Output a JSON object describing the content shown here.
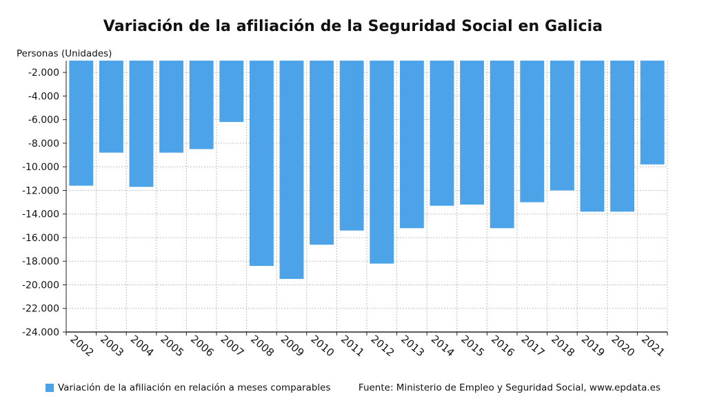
{
  "title": "Variación de la afiliación de la Seguridad Social en Galicia",
  "colors": {
    "bar": "#4da3e8",
    "grid": "#bdbdbd",
    "axis": "#222222"
  },
  "legend": {
    "label": "Variación de la afiliación en relación a meses comparables"
  },
  "source": "Fuente: Ministerio de Empleo y Seguridad Social, www.epdata.es",
  "chart_data": {
    "type": "bar",
    "ylabel": "Personas (Unidades)",
    "ylim": [
      -24000,
      -1000
    ],
    "yticks": [
      -2000,
      -4000,
      -6000,
      -8000,
      -10000,
      -12000,
      -14000,
      -16000,
      -18000,
      -20000,
      -22000,
      -24000
    ],
    "ytick_labels": [
      "-2.000",
      "-4.000",
      "-6.000",
      "-8.000",
      "-10.000",
      "-12.000",
      "-14.000",
      "-16.000",
      "-18.000",
      "-20.000",
      "-22.000",
      "-24.000"
    ],
    "categories": [
      "2002",
      "2003",
      "2004",
      "2005",
      "2006",
      "2007",
      "2008",
      "2009",
      "2010",
      "2011",
      "2012",
      "2013",
      "2014",
      "2015",
      "2016",
      "2017",
      "2018",
      "2019",
      "2020",
      "2021"
    ],
    "series": [
      {
        "name": "Variación de la afiliación en relación a meses comparables",
        "values": [
          -11600,
          -8800,
          -11700,
          -8800,
          -8500,
          -6200,
          -18400,
          -19500,
          -16600,
          -15400,
          -18200,
          -15200,
          -13300,
          -13200,
          -15200,
          -13000,
          -12000,
          -13800,
          -13800,
          -9800
        ]
      }
    ],
    "grid": true,
    "legend_position": "bottom-left"
  }
}
